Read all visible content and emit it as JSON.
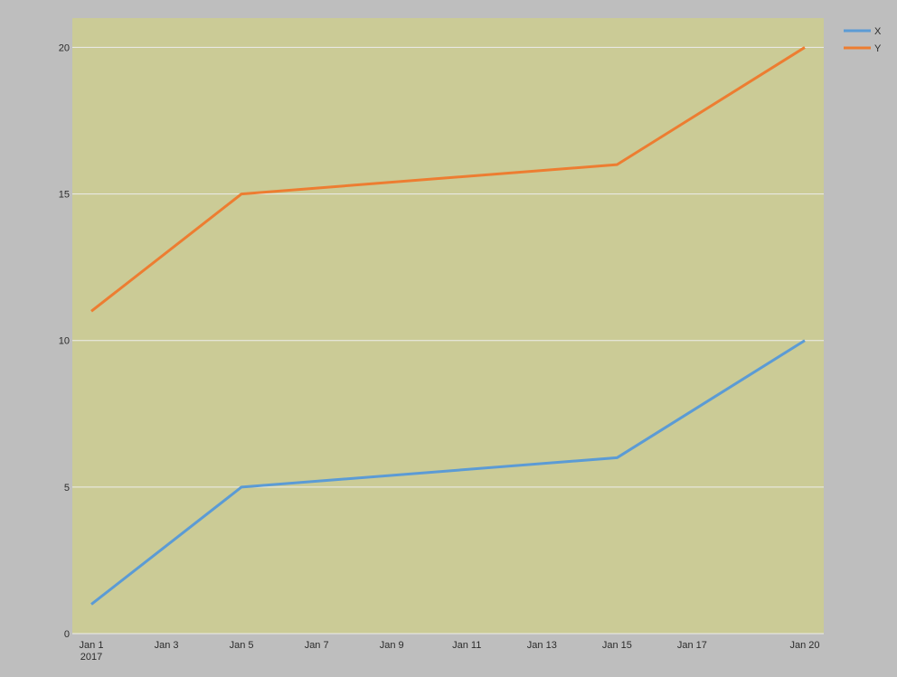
{
  "chart_data": {
    "type": "line",
    "title": "",
    "xlabel": "",
    "ylabel": "",
    "x": [
      "2017-01-01",
      "2017-01-05",
      "2017-01-15",
      "2017-01-20"
    ],
    "x_ticks": [
      {
        "date": "2017-01-01",
        "label": "Jan 1",
        "sublabel": "2017"
      },
      {
        "date": "2017-01-03",
        "label": "Jan 3",
        "sublabel": ""
      },
      {
        "date": "2017-01-05",
        "label": "Jan 5",
        "sublabel": ""
      },
      {
        "date": "2017-01-07",
        "label": "Jan 7",
        "sublabel": ""
      },
      {
        "date": "2017-01-09",
        "label": "Jan 9",
        "sublabel": ""
      },
      {
        "date": "2017-01-11",
        "label": "Jan 11",
        "sublabel": ""
      },
      {
        "date": "2017-01-13",
        "label": "Jan 13",
        "sublabel": ""
      },
      {
        "date": "2017-01-15",
        "label": "Jan 15",
        "sublabel": ""
      },
      {
        "date": "2017-01-17",
        "label": "Jan 17",
        "sublabel": ""
      },
      {
        "date": "2017-01-20",
        "label": "Jan 20",
        "sublabel": ""
      }
    ],
    "y_ticks": [
      0,
      5,
      10,
      15,
      20
    ],
    "ylim": [
      0,
      21
    ],
    "grid": true,
    "legend_position": "top-right",
    "series": [
      {
        "name": "X",
        "color": "#5b9bd5",
        "values": [
          1,
          5,
          6,
          10
        ]
      },
      {
        "name": "Y",
        "color": "#ed7d31",
        "values": [
          11,
          15,
          16,
          20
        ]
      }
    ],
    "colors": {
      "page_background": "#bebebe",
      "plot_background": "#cbcb96",
      "gridline": "#ececec"
    }
  }
}
